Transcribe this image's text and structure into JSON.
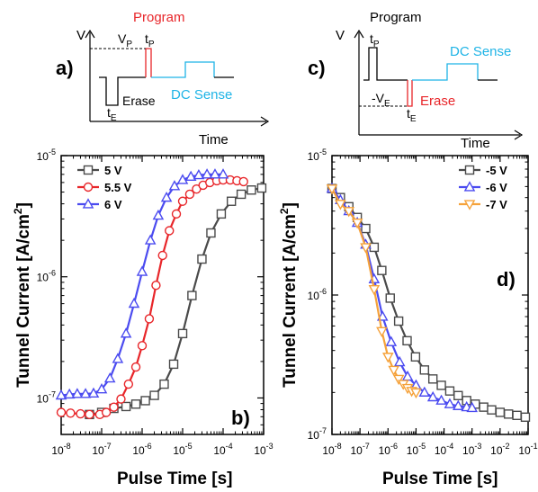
{
  "panels": {
    "a": {
      "label": "a)",
      "y_label": "V",
      "x_label": "Time",
      "vp_label": "V",
      "vp_sub": "P",
      "tp_label": "t",
      "tp_sub": "P",
      "te_label": "t",
      "te_sub": "E",
      "program_label": "Program",
      "erase_label": "Erase",
      "sense_label": "DC Sense",
      "colors": {
        "program": "#e8262a",
        "sense": "#1fb4e6",
        "base": "#000000"
      }
    },
    "c": {
      "label": "c)",
      "y_label": "V",
      "x_label": "Time",
      "program_label": "Program",
      "tp_label": "t",
      "tp_sub": "P",
      "ve_label": "-V",
      "ve_sub": "E",
      "te_label": "t",
      "te_sub": "E",
      "erase_label": "Erase",
      "sense_label": "DC Sense",
      "colors": {
        "erase": "#e8262a",
        "sense": "#1fb4e6",
        "base": "#000000"
      }
    }
  },
  "chart_data": [
    {
      "panel": "b)",
      "type": "line",
      "xlabel": "Pulse Time [s]",
      "ylabel": "Tunnel Current [A/cm2]",
      "xscale": "log",
      "yscale": "log",
      "xlim": [
        1e-08,
        0.001
      ],
      "ylim": [
        5e-08,
        1e-05
      ],
      "x_tick_labels": [
        "10-8",
        "10-7",
        "10-6",
        "10-5",
        "10-4",
        "10-3"
      ],
      "y_tick_labels": [
        "10-5",
        "10-6",
        "10-7"
      ],
      "legend_position": "top-left",
      "grid": false,
      "series": [
        {
          "name": "5 V",
          "marker": "square",
          "color": "#4a4a4a",
          "x": [
            5e-08,
            1e-07,
            2e-07,
            4e-07,
            7e-07,
            1.2e-06,
            2e-06,
            3.5e-06,
            6e-06,
            1e-05,
            1.7e-05,
            3e-05,
            5e-05,
            9e-05,
            0.00016,
            0.00028,
            0.0005,
            0.0009
          ],
          "y": [
            7.3e-08,
            7.6e-08,
            8.2e-08,
            8.5e-08,
            8.9e-08,
            9.5e-08,
            1.05e-07,
            1.3e-07,
            1.9e-07,
            3.4e-07,
            7e-07,
            1.4e-06,
            2.3e-06,
            3.3e-06,
            4.2e-06,
            4.8e-06,
            5.2e-06,
            5.4e-06
          ]
        },
        {
          "name": "5.5 V",
          "marker": "circle",
          "color": "#e8262a",
          "x": [
            1e-08,
            1.7e-08,
            3e-08,
            5e-08,
            9e-08,
            1.3e-07,
            2e-07,
            3e-07,
            4.6e-07,
            7e-07,
            1e-06,
            1.5e-06,
            2.2e-06,
            3.2e-06,
            4.7e-06,
            7e-06,
            1e-05,
            1.5e-05,
            2.2e-05,
            3.2e-05,
            4.7e-05,
            7e-05,
            0.0001,
            0.00015,
            0.00022,
            0.00032
          ],
          "y": [
            7.6e-08,
            7.5e-08,
            7.4e-08,
            7.3e-08,
            7.3e-08,
            7.6e-08,
            8.4e-08,
            9.8e-08,
            1.3e-07,
            1.8e-07,
            2.7e-07,
            4.5e-07,
            8.5e-07,
            1.5e-06,
            2.4e-06,
            3.3e-06,
            4.2e-06,
            4.8e-06,
            5.3e-06,
            5.7e-06,
            6e-06,
            6.2e-06,
            6.3e-06,
            6.3e-06,
            6.2e-06,
            6.1e-06
          ]
        },
        {
          "name": "6 V",
          "marker": "triangle-up",
          "color": "#4b4bf0",
          "x": [
            1e-08,
            1.6e-08,
            2.5e-08,
            4e-08,
            6.3e-08,
            1e-07,
            1.6e-07,
            2.5e-07,
            4e-07,
            6.3e-07,
            1e-06,
            1.6e-06,
            2.5e-06,
            4e-06,
            6.3e-06,
            1e-05,
            1.6e-05,
            2.5e-05,
            4e-05,
            6.3e-05,
            0.0001
          ],
          "y": [
            1.05e-07,
            1.07e-07,
            1.08e-07,
            1.08e-07,
            1.09e-07,
            1.18e-07,
            1.45e-07,
            2.1e-07,
            3.4e-07,
            6e-07,
            1.1e-06,
            2e-06,
            3.2e-06,
            4.5e-06,
            5.6e-06,
            6.3e-06,
            6.7e-06,
            6.9e-06,
            7e-06,
            7e-06,
            7e-06
          ]
        }
      ]
    },
    {
      "panel": "d)",
      "type": "line",
      "xlabel": "Pulse Time [s]",
      "ylabel": "Tunnel Current [A/cm2]",
      "xscale": "log",
      "yscale": "log",
      "xlim": [
        1e-08,
        0.1
      ],
      "ylim": [
        1e-07,
        1e-05
      ],
      "x_tick_labels": [
        "10-8",
        "10-7",
        "10-6",
        "10-5",
        "10-4",
        "10-3",
        "10-2",
        "10-1"
      ],
      "y_tick_labels": [
        "10-5",
        "10-6",
        "10-7"
      ],
      "legend_position": "top-right",
      "grid": false,
      "series": [
        {
          "name": "-5 V",
          "marker": "square",
          "color": "#4a4a4a",
          "x": [
            1e-08,
            2e-08,
            4e-08,
            8e-08,
            1.6e-07,
            3.2e-07,
            6e-07,
            1.2e-06,
            2.4e-06,
            4.8e-06,
            9.6e-06,
            2e-05,
            4e-05,
            8e-05,
            0.00016,
            0.00032,
            0.00064,
            0.0013,
            0.0026,
            0.005,
            0.01,
            0.02,
            0.04,
            0.08
          ],
          "y": [
            5.8e-06,
            5e-06,
            4.3e-06,
            3.6e-06,
            3e-06,
            2.2e-06,
            1.5e-06,
            9.5e-07,
            6.5e-07,
            4.7e-07,
            3.6e-07,
            2.9e-07,
            2.5e-07,
            2.25e-07,
            2.05e-07,
            1.9e-07,
            1.75e-07,
            1.65e-07,
            1.57e-07,
            1.5e-07,
            1.44e-07,
            1.4e-07,
            1.37e-07,
            1.33e-07
          ]
        },
        {
          "name": "-6 V",
          "marker": "triangle-up",
          "color": "#4b4bf0",
          "x": [
            1e-08,
            2e-08,
            4e-08,
            8e-08,
            1.6e-07,
            3.2e-07,
            6.4e-07,
            1.3e-06,
            2.6e-06,
            5e-06,
            1e-05,
            2e-05,
            4e-05,
            8e-05,
            0.00016,
            0.00032,
            0.00064,
            0.001
          ],
          "y": [
            5.8e-06,
            4.8e-06,
            4e-06,
            3.3e-06,
            2.3e-06,
            1.3e-06,
            7e-07,
            4.6e-07,
            3.3e-07,
            2.6e-07,
            2.25e-07,
            2e-07,
            1.85e-07,
            1.75e-07,
            1.65e-07,
            1.6e-07,
            1.57e-07,
            1.55e-07
          ]
        },
        {
          "name": "-7 V",
          "marker": "triangle-down",
          "color": "#f5a23b",
          "x": [
            1e-08,
            2e-08,
            4e-08,
            8e-08,
            1.6e-07,
            3.2e-07,
            6e-07,
            1e-06,
            1.6e-06,
            2.4e-06,
            3.5e-06,
            5e-06,
            7e-06,
            1e-05
          ],
          "y": [
            5.8e-06,
            4.5e-06,
            4e-06,
            3.3e-06,
            2.2e-06,
            1.1e-06,
            5.5e-07,
            3.6e-07,
            2.9e-07,
            2.5e-07,
            2.3e-07,
            2.15e-07,
            2.05e-07,
            2e-07
          ]
        }
      ]
    }
  ]
}
